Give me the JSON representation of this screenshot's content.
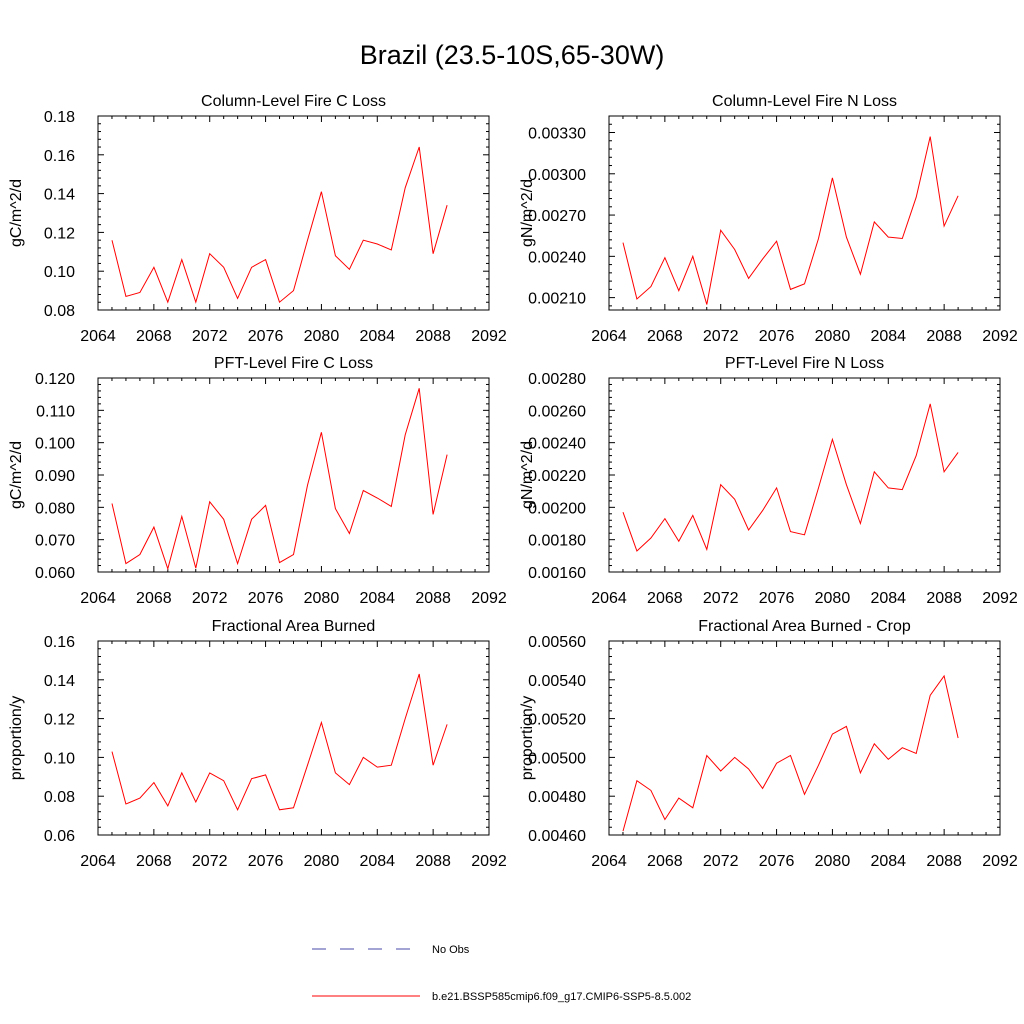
{
  "title": "Brazil (23.5-10S,65-30W)",
  "chart_data": [
    {
      "type": "line",
      "title": "Column-Level Fire C Loss",
      "ylabel": "gC/m^2/d",
      "xlabel": "",
      "xlim": [
        2064,
        2092
      ],
      "ylim": [
        0.08,
        0.18
      ],
      "x_ticks": [
        "2064",
        "2068",
        "2072",
        "2076",
        "2080",
        "2084",
        "2088",
        "2092"
      ],
      "y_ticks": [
        "0.08",
        "0.10",
        "0.12",
        "0.14",
        "0.16",
        "0.18"
      ],
      "x": [
        2065,
        2066,
        2067,
        2068,
        2069,
        2070,
        2071,
        2072,
        2073,
        2074,
        2075,
        2076,
        2077,
        2078,
        2079,
        2080,
        2081,
        2082,
        2083,
        2084,
        2085,
        2086,
        2087,
        2088,
        2089
      ],
      "series": [
        {
          "name": "b.e21.BSSP585cmip6.f09_g17.CMIP6-SSP5-8.5.002",
          "color": "#ff0000",
          "values": [
            0.116,
            0.087,
            0.089,
            0.102,
            0.084,
            0.106,
            0.084,
            0.109,
            0.102,
            0.086,
            0.102,
            0.106,
            0.084,
            0.09,
            0.116,
            0.141,
            0.108,
            0.101,
            0.116,
            0.114,
            0.111,
            0.143,
            0.164,
            0.109,
            0.134
          ]
        }
      ]
    },
    {
      "type": "line",
      "title": "Column-Level Fire N Loss",
      "ylabel": "gN/m^2/d",
      "xlabel": "",
      "xlim": [
        2064,
        2092
      ],
      "ylim": [
        0.00201,
        0.00342
      ],
      "x_ticks": [
        "2064",
        "2068",
        "2072",
        "2076",
        "2080",
        "2084",
        "2088",
        "2092"
      ],
      "y_ticks": [
        "0.00210",
        "0.00240",
        "0.00270",
        "0.00300",
        "0.00330"
      ],
      "x": [
        2065,
        2066,
        2067,
        2068,
        2069,
        2070,
        2071,
        2072,
        2073,
        2074,
        2075,
        2076,
        2077,
        2078,
        2079,
        2080,
        2081,
        2082,
        2083,
        2084,
        2085,
        2086,
        2087,
        2088,
        2089
      ],
      "series": [
        {
          "name": "b.e21.BSSP585cmip6.f09_g17.CMIP6-SSP5-8.5.002",
          "color": "#ff0000",
          "values": [
            0.0025,
            0.00209,
            0.00218,
            0.00239,
            0.00215,
            0.0024,
            0.00205,
            0.00259,
            0.00245,
            0.00224,
            0.00238,
            0.00251,
            0.00216,
            0.0022,
            0.00253,
            0.00297,
            0.00254,
            0.00227,
            0.00265,
            0.00254,
            0.00253,
            0.00283,
            0.00327,
            0.00262,
            0.00284
          ]
        }
      ]
    },
    {
      "type": "line",
      "title": "PFT-Level Fire C Loss",
      "ylabel": "gC/m^2/d",
      "xlabel": "",
      "xlim": [
        2064,
        2092
      ],
      "ylim": [
        0.06,
        0.12
      ],
      "x_ticks": [
        "2064",
        "2068",
        "2072",
        "2076",
        "2080",
        "2084",
        "2088",
        "2092"
      ],
      "y_ticks": [
        "0.060",
        "0.070",
        "0.080",
        "0.090",
        "0.100",
        "0.110",
        "0.120"
      ],
      "x": [
        2065,
        2066,
        2067,
        2068,
        2069,
        2070,
        2071,
        2072,
        2073,
        2074,
        2075,
        2076,
        2077,
        2078,
        2079,
        2080,
        2081,
        2082,
        2083,
        2084,
        2085,
        2086,
        2087,
        2088,
        2089
      ],
      "series": [
        {
          "name": "b.e21.BSSP585cmip6.f09_g17.CMIP6-SSP5-8.5.002",
          "color": "#ff0000",
          "values": [
            0.0812,
            0.0626,
            0.0654,
            0.0739,
            0.061,
            0.0772,
            0.0612,
            0.0817,
            0.0763,
            0.0626,
            0.0763,
            0.0806,
            0.0629,
            0.0654,
            0.0868,
            0.1032,
            0.0796,
            0.0719,
            0.0852,
            0.0829,
            0.0803,
            0.1024,
            0.1168,
            0.0778,
            0.0963
          ]
        }
      ]
    },
    {
      "type": "line",
      "title": "PFT-Level Fire N Loss",
      "ylabel": "gN/m^2/d",
      "xlabel": "",
      "xlim": [
        2064,
        2092
      ],
      "ylim": [
        0.0016,
        0.0028
      ],
      "x_ticks": [
        "2064",
        "2068",
        "2072",
        "2076",
        "2080",
        "2084",
        "2088",
        "2092"
      ],
      "y_ticks": [
        "0.00160",
        "0.00180",
        "0.00200",
        "0.00220",
        "0.00240",
        "0.00260",
        "0.00280"
      ],
      "x": [
        2065,
        2066,
        2067,
        2068,
        2069,
        2070,
        2071,
        2072,
        2073,
        2074,
        2075,
        2076,
        2077,
        2078,
        2079,
        2080,
        2081,
        2082,
        2083,
        2084,
        2085,
        2086,
        2087,
        2088,
        2089
      ],
      "series": [
        {
          "name": "b.e21.BSSP585cmip6.f09_g17.CMIP6-SSP5-8.5.002",
          "color": "#ff0000",
          "values": [
            0.00197,
            0.00173,
            0.00181,
            0.00193,
            0.00179,
            0.00195,
            0.00174,
            0.00214,
            0.00205,
            0.00186,
            0.00198,
            0.00212,
            0.00185,
            0.00183,
            0.00212,
            0.00242,
            0.00214,
            0.0019,
            0.00222,
            0.00212,
            0.00211,
            0.00232,
            0.00264,
            0.00222,
            0.00234
          ]
        }
      ]
    },
    {
      "type": "line",
      "title": "Fractional Area Burned",
      "ylabel": "proportion/y",
      "xlabel": "",
      "xlim": [
        2064,
        2092
      ],
      "ylim": [
        0.06,
        0.16
      ],
      "x_ticks": [
        "2064",
        "2068",
        "2072",
        "2076",
        "2080",
        "2084",
        "2088",
        "2092"
      ],
      "y_ticks": [
        "0.06",
        "0.08",
        "0.10",
        "0.12",
        "0.14",
        "0.16"
      ],
      "x": [
        2065,
        2066,
        2067,
        2068,
        2069,
        2070,
        2071,
        2072,
        2073,
        2074,
        2075,
        2076,
        2077,
        2078,
        2079,
        2080,
        2081,
        2082,
        2083,
        2084,
        2085,
        2086,
        2087,
        2088,
        2089
      ],
      "series": [
        {
          "name": "b.e21.BSSP585cmip6.f09_g17.CMIP6-SSP5-8.5.002",
          "color": "#ff0000",
          "values": [
            0.103,
            0.076,
            0.079,
            0.087,
            0.075,
            0.092,
            0.077,
            0.092,
            0.088,
            0.073,
            0.089,
            0.091,
            0.073,
            0.074,
            0.096,
            0.118,
            0.092,
            0.086,
            0.1,
            0.095,
            0.096,
            0.12,
            0.143,
            0.096,
            0.117
          ]
        }
      ]
    },
    {
      "type": "line",
      "title": "Fractional Area Burned - Crop",
      "ylabel": "proportion/y",
      "xlabel": "",
      "xlim": [
        2064,
        2092
      ],
      "ylim": [
        0.0046,
        0.0056
      ],
      "x_ticks": [
        "2064",
        "2068",
        "2072",
        "2076",
        "2080",
        "2084",
        "2088",
        "2092"
      ],
      "y_ticks": [
        "0.00460",
        "0.00480",
        "0.00500",
        "0.00520",
        "0.00540",
        "0.00560"
      ],
      "x": [
        2065,
        2066,
        2067,
        2068,
        2069,
        2070,
        2071,
        2072,
        2073,
        2074,
        2075,
        2076,
        2077,
        2078,
        2079,
        2080,
        2081,
        2082,
        2083,
        2084,
        2085,
        2086,
        2087,
        2088,
        2089
      ],
      "series": [
        {
          "name": "b.e21.BSSP585cmip6.f09_g17.CMIP6-SSP5-8.5.002",
          "color": "#ff0000",
          "values": [
            0.00462,
            0.00488,
            0.00483,
            0.00468,
            0.00479,
            0.00474,
            0.00501,
            0.00493,
            0.005,
            0.00494,
            0.00484,
            0.00497,
            0.00501,
            0.00481,
            0.00496,
            0.00512,
            0.00516,
            0.00492,
            0.00507,
            0.00499,
            0.00505,
            0.00502,
            0.00532,
            0.00542,
            0.0051
          ]
        }
      ]
    }
  ],
  "legend": {
    "entries": [
      {
        "label": "No Obs",
        "color": "#4a4aa8",
        "dash": true
      },
      {
        "label": "b.e21.BSSP585cmip6.f09_g17.CMIP6-SSP5-8.5.002",
        "color": "#ff0000",
        "dash": false
      }
    ]
  }
}
